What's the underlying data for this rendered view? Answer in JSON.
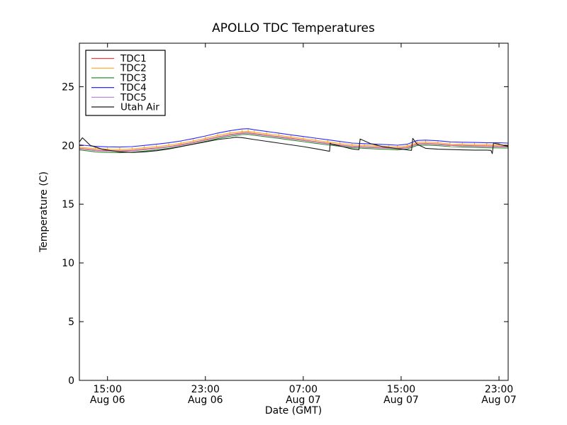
{
  "title": "APOLLO TDC Temperatures",
  "xlabel": "Date (GMT)",
  "ylabel": "Temperature (C)",
  "frame_color": "#000000",
  "background_color": "#ffffff",
  "chart_data": {
    "type": "line",
    "title": "APOLLO TDC Temperatures",
    "xlabel": "Date (GMT)",
    "ylabel": "Temperature (C)",
    "grid": false,
    "legend_position": "upper left",
    "legend_entries": [
      "TDC1",
      "TDC2",
      "TDC3",
      "TDC4",
      "TDC5",
      "Utah Air"
    ],
    "x_unit": "hours since Aug 06 12:00 GMT",
    "xlim": [
      0.7,
      35.75
    ],
    "ylim": [
      0,
      28.7
    ],
    "yticks": [
      0,
      5,
      10,
      15,
      20,
      25
    ],
    "xticks": [
      {
        "h": 3,
        "time": "15:00",
        "date": "Aug 06"
      },
      {
        "h": 11,
        "time": "23:00",
        "date": "Aug 06"
      },
      {
        "h": 19,
        "time": "07:00",
        "date": "Aug 07"
      },
      {
        "h": 27,
        "time": "15:00",
        "date": "Aug 07"
      },
      {
        "h": 35,
        "time": "23:00",
        "date": "Aug 07"
      }
    ],
    "series": [
      {
        "name": "TDC1",
        "color": "#e8403a",
        "marker": "none",
        "x": [
          0.7,
          2,
          3,
          4,
          5,
          6,
          7,
          8,
          9,
          10,
          11,
          12,
          13,
          14,
          14.5,
          15,
          16,
          17,
          18,
          19,
          20,
          21,
          22,
          23,
          24,
          25,
          26,
          26.7,
          27.5,
          28.3,
          29,
          30,
          31,
          32,
          33,
          34,
          35,
          35.75
        ],
        "y": [
          19.75,
          19.6,
          19.56,
          19.54,
          19.58,
          19.68,
          19.78,
          19.9,
          20.06,
          20.26,
          20.48,
          20.72,
          20.92,
          21.06,
          21.08,
          21.0,
          20.87,
          20.74,
          20.6,
          20.46,
          20.32,
          20.18,
          20.05,
          19.93,
          19.88,
          19.84,
          19.8,
          19.76,
          19.84,
          20.14,
          20.17,
          20.12,
          20.03,
          20.0,
          19.97,
          19.95,
          19.94,
          19.92
        ]
      },
      {
        "name": "TDC2",
        "color": "#ffa420",
        "marker": "|",
        "x": [
          0.7,
          2,
          3,
          4,
          5,
          6,
          7,
          8,
          9,
          10,
          11,
          12,
          13,
          14,
          14.5,
          15,
          16,
          17,
          18,
          19,
          20,
          21,
          22,
          23,
          24,
          25,
          26,
          26.7,
          27.5,
          28.3,
          29,
          30,
          31,
          32,
          33,
          34,
          35,
          35.75
        ],
        "y": [
          19.85,
          19.72,
          19.68,
          19.66,
          19.7,
          19.8,
          19.9,
          20.02,
          20.18,
          20.38,
          20.6,
          20.85,
          21.05,
          21.18,
          21.2,
          21.12,
          20.99,
          20.86,
          20.72,
          20.58,
          20.44,
          20.3,
          20.17,
          20.04,
          20.0,
          19.95,
          19.9,
          19.87,
          19.95,
          20.25,
          20.28,
          20.23,
          20.14,
          20.1,
          20.08,
          20.06,
          20.05,
          20.03
        ]
      },
      {
        "name": "TDC3",
        "color": "#2e8b2e",
        "marker": "none",
        "x": [
          0.7,
          2,
          3,
          4,
          5,
          6,
          7,
          8,
          9,
          10,
          11,
          12,
          13,
          14,
          14.5,
          15,
          16,
          17,
          18,
          19,
          20,
          21,
          22,
          23,
          24,
          25,
          26,
          26.7,
          27.5,
          28.3,
          29,
          30,
          31,
          32,
          33,
          34,
          35,
          35.75
        ],
        "y": [
          19.62,
          19.45,
          19.4,
          19.38,
          19.42,
          19.52,
          19.62,
          19.75,
          19.92,
          20.12,
          20.34,
          20.58,
          20.78,
          20.92,
          20.94,
          20.86,
          20.73,
          20.6,
          20.46,
          20.32,
          20.18,
          20.05,
          19.92,
          19.8,
          19.75,
          19.7,
          19.66,
          19.62,
          19.7,
          20.0,
          20.03,
          19.98,
          19.9,
          19.86,
          19.83,
          19.8,
          19.79,
          19.77
        ]
      },
      {
        "name": "TDC4",
        "color": "#2a2aff",
        "marker": "none",
        "x": [
          0.7,
          2,
          3,
          4,
          5,
          6,
          7,
          8,
          9,
          10,
          11,
          12,
          13,
          14,
          14.5,
          15,
          16,
          17,
          18,
          19,
          20,
          21,
          22,
          23,
          24,
          25,
          26,
          26.7,
          27.5,
          28.3,
          29,
          30,
          31,
          32,
          33,
          34,
          35,
          35.75
        ],
        "y": [
          20.05,
          19.92,
          19.88,
          19.86,
          19.9,
          20.0,
          20.1,
          20.22,
          20.38,
          20.58,
          20.8,
          21.05,
          21.25,
          21.4,
          21.42,
          21.33,
          21.19,
          21.05,
          20.9,
          20.76,
          20.62,
          20.48,
          20.34,
          20.2,
          20.15,
          20.1,
          20.06,
          20.02,
          20.1,
          20.42,
          20.45,
          20.4,
          20.3,
          20.27,
          20.25,
          20.22,
          20.22,
          20.2
        ]
      },
      {
        "name": "TDC5",
        "color": "#b57cc8",
        "marker": "none",
        "x": [
          0.7,
          2,
          3,
          4,
          5,
          6,
          7,
          8,
          9,
          10,
          11,
          12,
          13,
          14,
          14.5,
          15,
          16,
          17,
          18,
          19,
          20,
          21,
          22,
          23,
          24,
          25,
          26,
          26.7,
          27.5,
          28.3,
          29,
          30,
          31,
          32,
          33,
          34,
          35,
          35.75
        ],
        "y": [
          19.72,
          19.56,
          19.52,
          19.5,
          19.54,
          19.64,
          19.74,
          19.86,
          20.02,
          20.22,
          20.44,
          20.68,
          20.88,
          21.02,
          21.04,
          20.96,
          20.83,
          20.7,
          20.56,
          20.42,
          20.28,
          20.14,
          20.01,
          19.89,
          19.84,
          19.8,
          19.76,
          19.72,
          19.8,
          20.1,
          20.13,
          20.08,
          19.99,
          19.96,
          19.93,
          19.91,
          19.9,
          19.88
        ]
      },
      {
        "name": "Utah Air",
        "color": "#1a1a1a",
        "marker": "none",
        "x": [
          0.7,
          0.95,
          1.6,
          2.5,
          3,
          4,
          5,
          6,
          7,
          8,
          9,
          10,
          11,
          12,
          13,
          13.5,
          14,
          15,
          16,
          17,
          18,
          19,
          20,
          21.15,
          21.2,
          21.3,
          22,
          23,
          23.55,
          23.65,
          24.5,
          25.5,
          26.5,
          27.5,
          27.85,
          27.95,
          28.3,
          29,
          30,
          31,
          32,
          33,
          34,
          34.35,
          34.45,
          34.55,
          35,
          35.75
        ],
        "y": [
          20.3,
          20.65,
          20.0,
          19.7,
          19.6,
          19.45,
          19.4,
          19.45,
          19.55,
          19.7,
          19.9,
          20.1,
          20.3,
          20.5,
          20.62,
          20.7,
          20.66,
          20.5,
          20.35,
          20.2,
          20.05,
          19.9,
          19.72,
          19.5,
          20.2,
          20.1,
          19.95,
          19.7,
          19.63,
          20.55,
          20.15,
          19.9,
          19.75,
          19.62,
          19.58,
          20.6,
          20.1,
          19.75,
          19.68,
          19.65,
          19.62,
          19.6,
          19.6,
          19.58,
          19.3,
          20.2,
          20.1,
          19.9
        ]
      }
    ]
  }
}
